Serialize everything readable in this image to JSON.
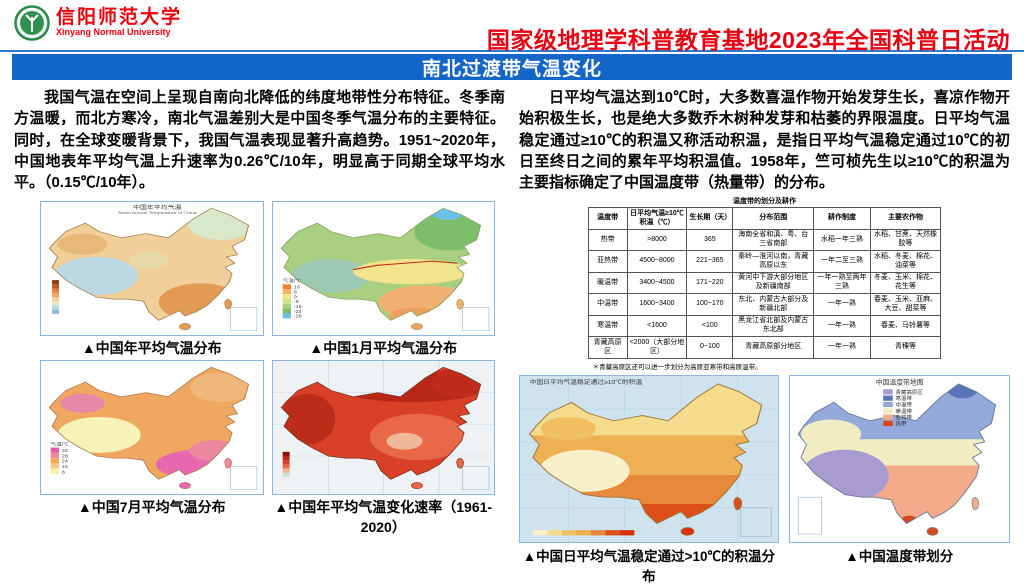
{
  "header": {
    "logo": {
      "cn": "信阳师范大学",
      "en": "Xinyang Normal University"
    },
    "event_title": "国家级地理学科普教育基地2023年全国科普日活动"
  },
  "banner": {
    "title": "南北过渡带气温变化"
  },
  "colors": {
    "banner_blue": "#1465c8",
    "title_red": "#e60012",
    "map_border_blue": "#8ab6e0"
  },
  "left": {
    "paragraph": "我国气温在空间上呈现自南向北降低的纬度地带性分布特征。冬季南方温暖，而北方寒冷，南北气温差别大是中国冬季气温分布的主要特征。同时，在全球变暖背景下，我国气温表现显著升高趋势。1951~2020年，中国地表年平均气温上升速率为0.26℃/10年，明显高于同期全球平均水平。（0.15℃/10年）。",
    "maps": [
      {
        "title_cn": "中国年平均气温",
        "title_en": "Mean Annual Temperature of China",
        "caption": "▲中国年平均气温分布"
      },
      {
        "caption": "▲中国1月平均气温分布",
        "legend_label": "气温/℃",
        "legend_values": [
          "16",
          "8",
          "0",
          "-8",
          "-16",
          "-24",
          "-28"
        ],
        "palette": [
          "#f08030",
          "#f5b060",
          "#f2e48c",
          "#cfe08c",
          "#a8d080",
          "#7cbe6c",
          "#6cc0e8"
        ]
      },
      {
        "caption": "▲中国7月平均气温分布",
        "legend_label": "气温/℃",
        "legend_values": [
          "32",
          "28",
          "24",
          "16",
          "8"
        ],
        "palette": [
          "#e060a8",
          "#ec88a0",
          "#f0a860",
          "#f3c888",
          "#f6f0a8"
        ]
      },
      {
        "caption": "▲中国年平均气温变化速率（1961-2020）"
      }
    ]
  },
  "right": {
    "paragraph": "日平均气温达到10℃时，大多数喜温作物开始发芽生长，喜凉作物开始积极生长，也是绝大多数乔木树种发芽和枯萎的界限温度。日平均气温稳定通过≥10℃的积温又称活动积温，是指日平均气温稳定通过10℃的初日至终日之间的累年平均积温值。1958年，竺可桢先生以≥10℃的积温为主要指标确定了中国温度带（热量带）的分布。",
    "table": {
      "title": "温度带的划分及耕作",
      "headers": [
        "温度带",
        "日平均气温≥10℃积温（℃）",
        "生长期（天）",
        "分布范围",
        "耕作制度",
        "主要农作物"
      ],
      "rows": [
        [
          "热带",
          ">8000",
          "365",
          "海南全省和滇、粤、台三省南部",
          "水稻一年三熟",
          "水稻、甘蔗、天然橡胶等"
        ],
        [
          "亚热带",
          "4500~8000",
          "221~365",
          "秦岭—淮河以南，青藏高原以东",
          "一年二至三熟",
          "水稻、冬麦、棉花、油菜等"
        ],
        [
          "暖温带",
          "3400~4500",
          "171~220",
          "黄河中下游大部分地区及新疆南部",
          "一年一熟至两年三熟",
          "冬麦、玉米、棉花、花生等"
        ],
        [
          "中温带",
          "1600~3400",
          "100~170",
          "东北、内蒙古大部分及新疆北部",
          "一年一熟",
          "春麦、玉米、亚麻、大豆、甜菜等"
        ],
        [
          "寒温带",
          "<1600",
          "<100",
          "黑龙江省北部及内蒙古东北部",
          "一年一熟",
          "春麦、马铃薯等"
        ],
        [
          "青藏高原区",
          "<2000（大部分地区）",
          "0~100",
          "青藏高原部分地区",
          "一年一熟",
          "青稞等"
        ]
      ],
      "footnote": "＊青藏高原区还可以进一步划分为高原亚寒带和高原温带。"
    },
    "maps": [
      {
        "title_cn": "中国日平均气温稳定通过≥10℃的积温",
        "caption": "▲中国日平均气温稳定通过>10℃的积温分布"
      },
      {
        "title_cn": "中国温度带地图",
        "caption": "▲中国温度带划分",
        "legend": [
          {
            "label": "青藏高原区",
            "color": "#a79bd0"
          },
          {
            "label": "寒温带",
            "color": "#5a74b8"
          },
          {
            "label": "中温带",
            "color": "#93aada"
          },
          {
            "label": "暖温带",
            "color": "#f2ecc2"
          },
          {
            "label": "亚热带",
            "color": "#f4ab89"
          },
          {
            "label": "热带",
            "color": "#d9481c"
          }
        ]
      }
    ]
  }
}
